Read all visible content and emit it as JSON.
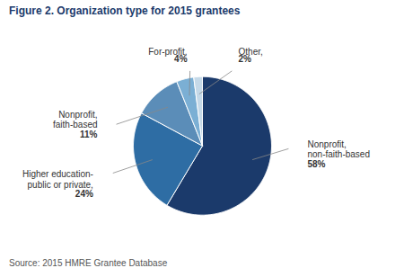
{
  "chart_data": {
    "type": "pie",
    "title": "Figure 2. Organization type for 2015 grantees",
    "categories": [
      "Nonprofit,\nnon-faith-based",
      "Higher education-\npublic or private,",
      "Nonprofit,\nfaith-based",
      "For-profit,",
      "Other,"
    ],
    "values": [
      58,
      24,
      11,
      4,
      2
    ],
    "value_labels": [
      "58%",
      "24%",
      "11%",
      "4%",
      "2%"
    ],
    "colors": [
      "#1B3A6B",
      "#2E6DA4",
      "#5B8DB8",
      "#7BAFD4",
      "#C5D9E8"
    ],
    "data_labels": true,
    "caption": "Source: 2015 HMRE Grantee Database"
  }
}
